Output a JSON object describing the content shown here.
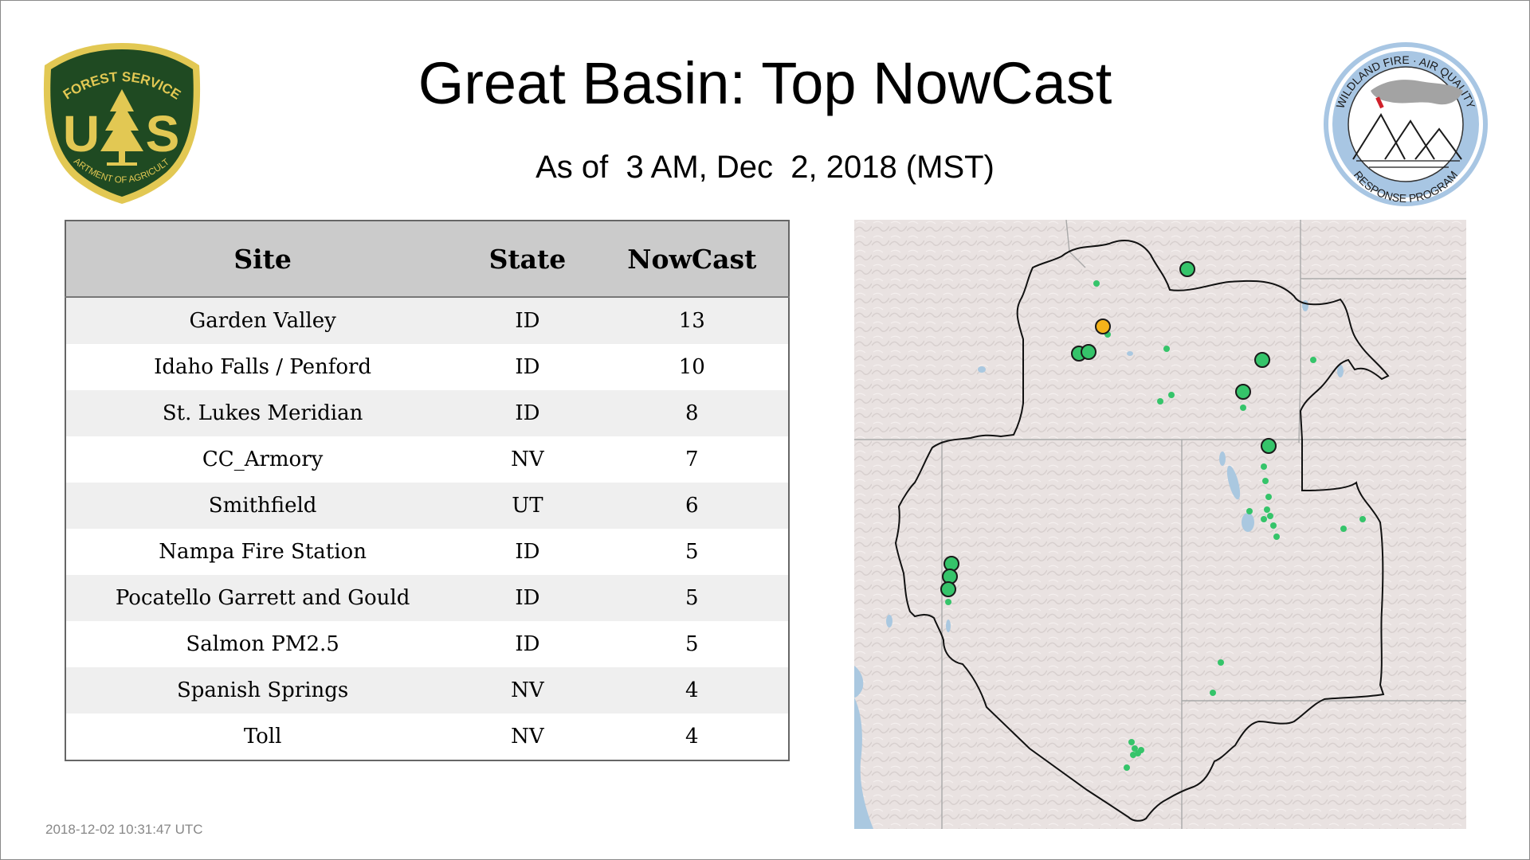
{
  "page": {
    "title": "Great Basin: Top NowCast",
    "subtitle": "As of  3 AM, Dec  2, 2018 (MST)",
    "timestamp": "2018-12-02 10:31:47 UTC"
  },
  "logos": {
    "usfs": {
      "top_text": "FOREST SERVICE",
      "letters_left": "U",
      "letters_right": "S",
      "bottom_text": "DEPARTMENT OF AGRICULTURE",
      "icon": "pine-tree-icon",
      "colors": {
        "shield": "#1f4a22",
        "gold": "#e2c853"
      }
    },
    "wfaq": {
      "top_text": "WILDLAND FIRE · AIR QUALITY",
      "bottom_text": "RESPONSE PROGRAM",
      "icon": "mountains-smoke-icon",
      "colors": {
        "ring": "#a8c6e3",
        "smoke": "#a3a3a3",
        "flag": "#d0202a"
      }
    }
  },
  "table": {
    "headers": [
      "Site",
      "State",
      "NowCast"
    ],
    "rows": [
      {
        "site": "Garden Valley",
        "state": "ID",
        "nowcast": "13"
      },
      {
        "site": "Idaho Falls / Penford",
        "state": "ID",
        "nowcast": "10"
      },
      {
        "site": "St. Lukes Meridian",
        "state": "ID",
        "nowcast": "8"
      },
      {
        "site": "CC_Armory",
        "state": "NV",
        "nowcast": "7"
      },
      {
        "site": "Smithfield",
        "state": "UT",
        "nowcast": "6"
      },
      {
        "site": "Nampa Fire Station",
        "state": "ID",
        "nowcast": "5"
      },
      {
        "site": "Pocatello Garrett and Gould",
        "state": "ID",
        "nowcast": "5"
      },
      {
        "site": "Salmon PM2.5",
        "state": "ID",
        "nowcast": "5"
      },
      {
        "site": "Spanish Springs",
        "state": "NV",
        "nowcast": "4"
      },
      {
        "site": "Toll",
        "state": "NV",
        "nowcast": "4"
      }
    ]
  },
  "map": {
    "region": "Great Basin",
    "colors": {
      "land": "#e9e2e1",
      "water": "#aac8e0",
      "boundary": "#111111",
      "state_lines": "#a9a9a9",
      "good": "#35c46a",
      "moderate": "#f4b31a"
    },
    "marker_categories": [
      "good",
      "moderate"
    ]
  }
}
